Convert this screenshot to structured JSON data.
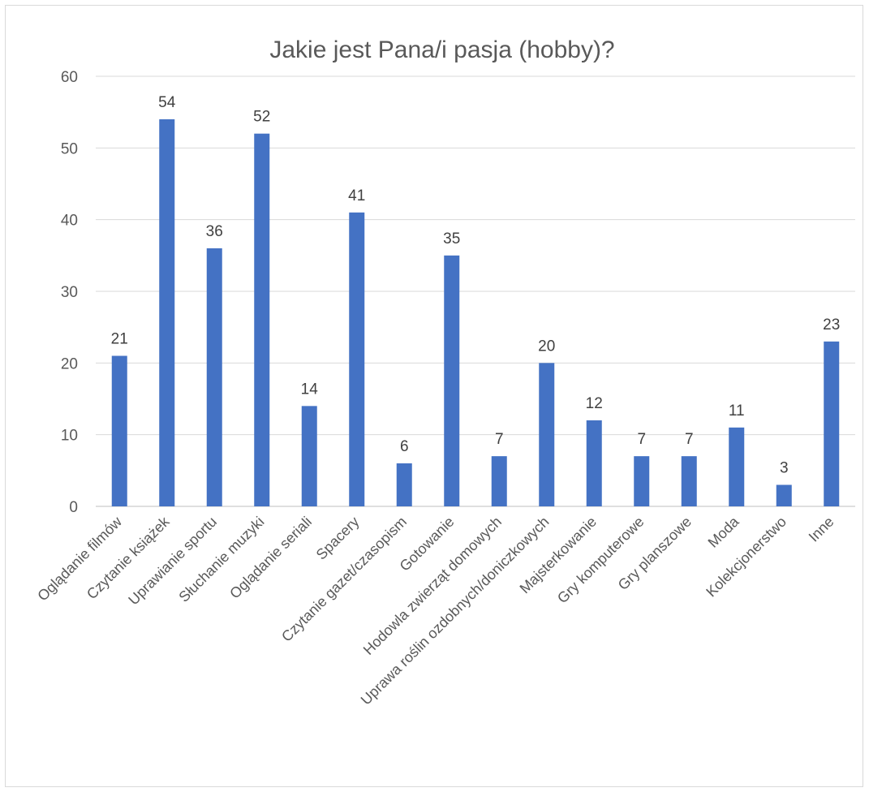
{
  "chart_data": {
    "type": "bar",
    "title": "Jakie jest Pana/i pasja (hobby)?",
    "xlabel": "",
    "ylabel": "",
    "ylim": [
      0,
      60
    ],
    "yticks": [
      0,
      10,
      20,
      30,
      40,
      50,
      60
    ],
    "grid": true,
    "legend": "none",
    "bar_color": "#4472C4",
    "categories": [
      "Oglądanie filmów",
      "Czytanie książek",
      "Uprawianie sportu",
      "Słuchanie muzyki",
      "Oglądanie seriali",
      "Spacery",
      "Czytanie gazet/czasopism",
      "Gotowanie",
      "Hodowla zwierząt domowych",
      "Uprawa roślin ozdobnych/doniczkowych",
      "Majsterkowanie",
      "Gry komputerowe",
      "Gry planszowe",
      "Moda",
      "Kolekcjonerstwo",
      "Inne"
    ],
    "values": [
      21,
      54,
      36,
      52,
      14,
      41,
      6,
      35,
      7,
      20,
      12,
      7,
      7,
      11,
      3,
      23
    ]
  }
}
